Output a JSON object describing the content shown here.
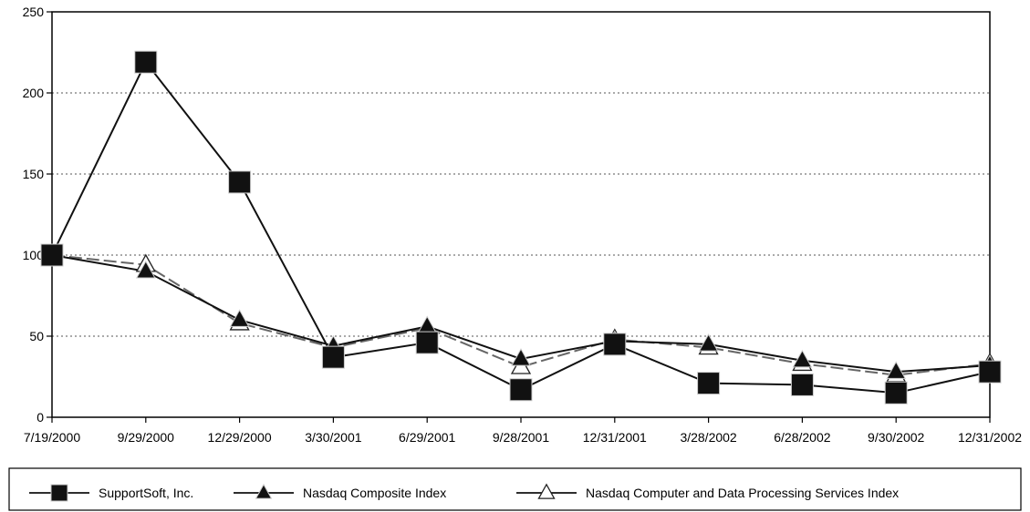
{
  "chart_data": {
    "type": "line",
    "title": "",
    "xlabel": "",
    "ylabel": "",
    "categories": [
      "7/19/2000",
      "9/29/2000",
      "12/29/2000",
      "3/30/2001",
      "6/29/2001",
      "9/28/2001",
      "12/31/2001",
      "3/28/2002",
      "6/28/2002",
      "9/30/2002",
      "12/31/2002"
    ],
    "ylim": [
      0,
      250
    ],
    "yticks": [
      "0",
      "50",
      "100",
      "150",
      "200",
      "250"
    ],
    "grid": "horizontal dotted",
    "legend_position": "bottom",
    "series": [
      {
        "name": "SupportSoft, Inc.",
        "marker": "filled-square",
        "values": [
          100,
          219,
          145,
          37,
          46,
          17,
          45,
          21,
          20,
          15,
          28
        ]
      },
      {
        "name": "Nasdaq Composite Index",
        "marker": "filled-triangle",
        "values": [
          100,
          90,
          60,
          44,
          56,
          36,
          47,
          45,
          35,
          28,
          32
        ]
      },
      {
        "name": "Nasdaq Computer and Data Processing Services Index",
        "marker": "open-triangle",
        "values": [
          100,
          94,
          58,
          43,
          55,
          31,
          48,
          43,
          33,
          26,
          33
        ]
      }
    ]
  }
}
